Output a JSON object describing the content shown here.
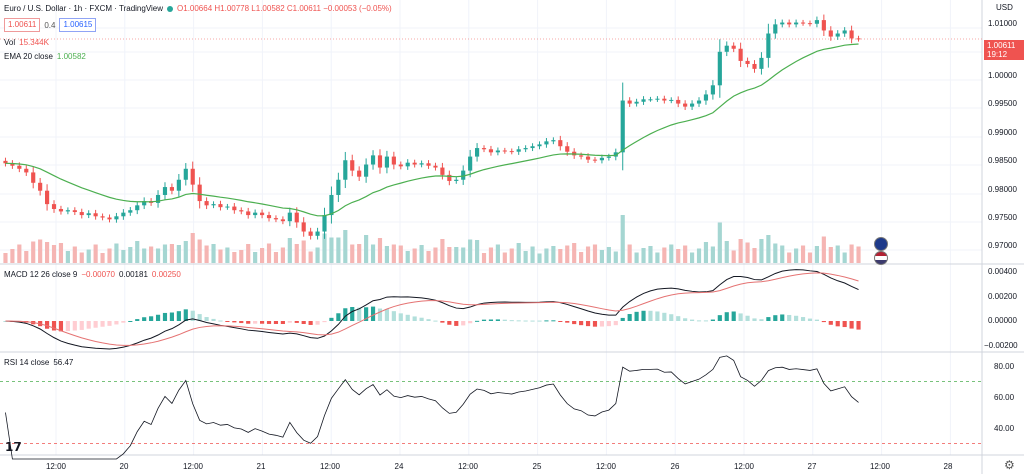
{
  "header": {
    "symbol_title": "Euro / U.S. Dollar · 1h · FXCM · TradingView",
    "ohlc": "O1.00664 H1.00778 L1.00582 C1.00611 −0.00053 (−0.05%)",
    "bid": "1.00611",
    "spread": "0.4",
    "ask": "1.00615",
    "vol_label": "Vol",
    "vol_value": "15.344K",
    "ema_label": "EMA 20 close",
    "ema_value": "1.00582"
  },
  "price_axis": {
    "currency": "USD",
    "ticks": [
      "1.01000",
      "1.00500",
      "1.00000",
      "0.99500",
      "0.99000",
      "0.98500",
      "0.98000",
      "0.97500",
      "0.97000"
    ],
    "last_price": "1.00611",
    "countdown": "19:12"
  },
  "macd_pane": {
    "label": "MACD 12 26 close 9",
    "v1": "−0.00070",
    "v2": "0.00181",
    "v3": "0.00250",
    "ticks": [
      "0.00400",
      "0.00200",
      "0.00000",
      "−0.00200"
    ]
  },
  "rsi_pane": {
    "label": "RSI 14 close",
    "value": "56.47",
    "ticks": [
      "80.00",
      "60.00",
      "40.00"
    ]
  },
  "time_axis": [
    "12:00",
    "20",
    "12:00",
    "21",
    "12:00",
    "24",
    "12:00",
    "25",
    "12:00",
    "26",
    "12:00",
    "27",
    "12:00",
    "28"
  ],
  "colors": {
    "up": "#26a69a",
    "down": "#ef5350",
    "ema": "#4caf50",
    "macd": "#131722",
    "signal": "#e57373",
    "rsi": "#131722"
  },
  "icons": [
    "tradingview-logo-icon",
    "settings-gear-icon",
    "flag-eu-icon",
    "flag-us-icon"
  ],
  "chart_data": {
    "type": "candlestick",
    "title": "Euro / U.S. Dollar · 1h · FXCM",
    "closes": [
      0.9857,
      0.9853,
      0.9848,
      0.9842,
      0.9825,
      0.9812,
      0.979,
      0.9782,
      0.9778,
      0.978,
      0.9777,
      0.9772,
      0.9775,
      0.977,
      0.9768,
      0.9765,
      0.977,
      0.9776,
      0.978,
      0.9788,
      0.9795,
      0.9792,
      0.9805,
      0.9818,
      0.9812,
      0.983,
      0.9848,
      0.9822,
      0.9795,
      0.9788,
      0.979,
      0.9785,
      0.9786,
      0.978,
      0.9778,
      0.9772,
      0.9776,
      0.9772,
      0.9767,
      0.9765,
      0.9762,
      0.9776,
      0.976,
      0.9745,
      0.9738,
      0.9745,
      0.9772,
      0.9805,
      0.983,
      0.9862,
      0.9845,
      0.9835,
      0.9855,
      0.987,
      0.985,
      0.9868,
      0.9855,
      0.9852,
      0.9858,
      0.9855,
      0.9857,
      0.9853,
      0.985,
      0.9838,
      0.9828,
      0.983,
      0.9845,
      0.9868,
      0.9882,
      0.988,
      0.9875,
      0.9878,
      0.9877,
      0.9876,
      0.988,
      0.9882,
      0.9885,
      0.9888,
      0.9893,
      0.9895,
      0.9885,
      0.9876,
      0.987,
      0.9868,
      0.9863,
      0.9862,
      0.9866,
      0.9868,
      0.9875,
      0.996,
      0.9955,
      0.9958,
      0.9962,
      0.9962,
      0.9963,
      0.996,
      0.9961,
      0.9955,
      0.995,
      0.9955,
      0.996,
      0.997,
      0.9985,
      1.004,
      1.005,
      1.0045,
      1.0025,
      1.002,
      1.0012,
      1.003,
      1.007,
      1.0085,
      1.0088,
      1.0085,
      1.0088,
      1.0087,
      1.0086,
      1.0092,
      1.0075,
      1.0065,
      1.007,
      1.0075,
      1.0062,
      1.0061
    ],
    "ylim": [
      0.9695,
      1.0125
    ],
    "ema_last": 1.00582,
    "rsi_last": 56.47
  }
}
